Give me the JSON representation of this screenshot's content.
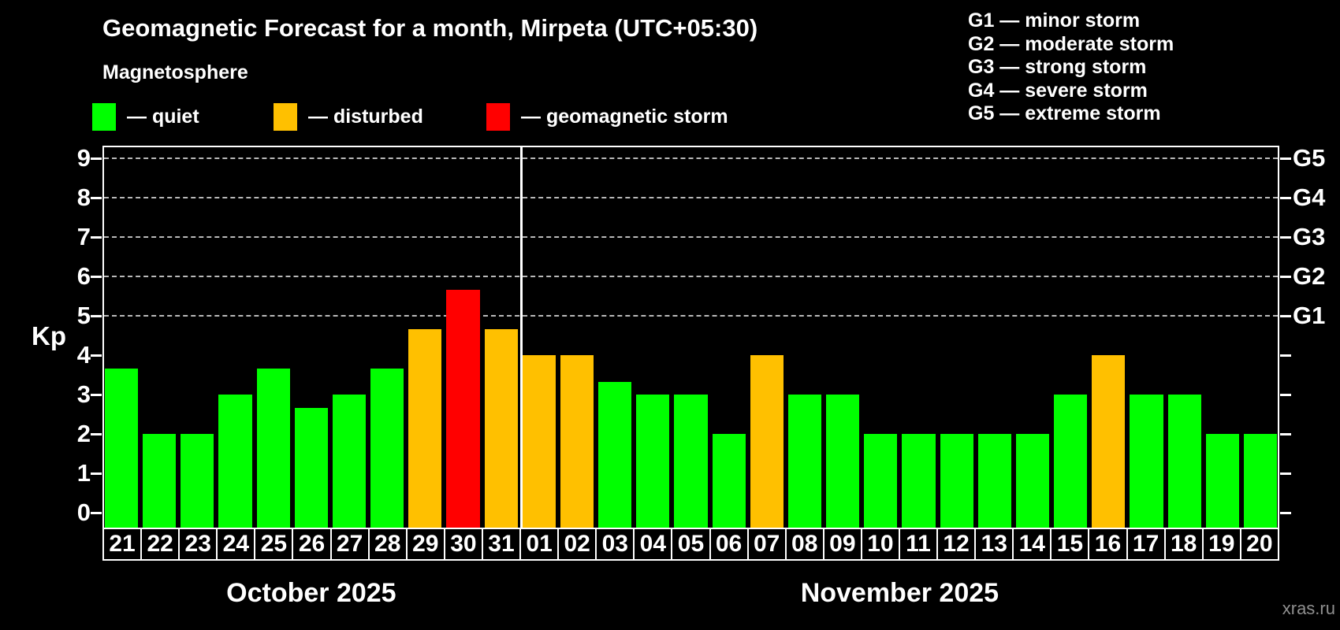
{
  "title": "Geomagnetic Forecast for a month, Mirpeta (UTC+05:30)",
  "subtitle": "Magnetosphere",
  "legend": {
    "items": [
      {
        "status": "quiet",
        "label": "— quiet",
        "color": "#00ff00"
      },
      {
        "status": "disturbed",
        "label": "— disturbed",
        "color": "#ffc000"
      },
      {
        "status": "storm",
        "label": "— geomagnetic storm",
        "color": "#ff0000"
      }
    ]
  },
  "g_legend": [
    "G1 — minor storm",
    "G2 — moderate storm",
    "G3 — strong storm",
    "G4 — severe storm",
    "G5 — extreme storm"
  ],
  "watermark": "xras.ru",
  "chart_data": {
    "type": "bar",
    "title": "Geomagnetic Forecast for a month, Mirpeta (UTC+05:30)",
    "ylabel": "Kp",
    "ylim": [
      0,
      9.4
    ],
    "yticks": [
      0,
      1,
      2,
      3,
      4,
      5,
      6,
      7,
      8,
      9
    ],
    "grid": true,
    "legend_position": "top",
    "colors": {
      "quiet": "#00ff00",
      "disturbed": "#ffc000",
      "storm": "#ff0000"
    },
    "grid_levels": [
      {
        "kp": 5,
        "label": "G1"
      },
      {
        "kp": 6,
        "label": "G2"
      },
      {
        "kp": 7,
        "label": "G3"
      },
      {
        "kp": 8,
        "label": "G4"
      },
      {
        "kp": 9,
        "label": "G5"
      }
    ],
    "months": [
      {
        "label": "October 2025",
        "days": 11
      },
      {
        "label": "November 2025",
        "days": 20
      }
    ],
    "bars": [
      {
        "day": "21",
        "kp": 3.67,
        "status": "quiet"
      },
      {
        "day": "22",
        "kp": 2.0,
        "status": "quiet"
      },
      {
        "day": "23",
        "kp": 2.0,
        "status": "quiet"
      },
      {
        "day": "24",
        "kp": 3.0,
        "status": "quiet"
      },
      {
        "day": "25",
        "kp": 3.67,
        "status": "quiet"
      },
      {
        "day": "26",
        "kp": 2.67,
        "status": "quiet"
      },
      {
        "day": "27",
        "kp": 3.0,
        "status": "quiet"
      },
      {
        "day": "28",
        "kp": 3.67,
        "status": "quiet"
      },
      {
        "day": "29",
        "kp": 4.67,
        "status": "disturbed"
      },
      {
        "day": "30",
        "kp": 5.67,
        "status": "storm"
      },
      {
        "day": "31",
        "kp": 4.67,
        "status": "disturbed"
      },
      {
        "day": "01",
        "kp": 4.0,
        "status": "disturbed"
      },
      {
        "day": "02",
        "kp": 4.0,
        "status": "disturbed"
      },
      {
        "day": "03",
        "kp": 3.33,
        "status": "quiet"
      },
      {
        "day": "04",
        "kp": 3.0,
        "status": "quiet"
      },
      {
        "day": "05",
        "kp": 3.0,
        "status": "quiet"
      },
      {
        "day": "06",
        "kp": 2.0,
        "status": "quiet"
      },
      {
        "day": "07",
        "kp": 4.0,
        "status": "disturbed"
      },
      {
        "day": "08",
        "kp": 3.0,
        "status": "quiet"
      },
      {
        "day": "09",
        "kp": 3.0,
        "status": "quiet"
      },
      {
        "day": "10",
        "kp": 2.0,
        "status": "quiet"
      },
      {
        "day": "11",
        "kp": 2.0,
        "status": "quiet"
      },
      {
        "day": "12",
        "kp": 2.0,
        "status": "quiet"
      },
      {
        "day": "13",
        "kp": 2.0,
        "status": "quiet"
      },
      {
        "day": "14",
        "kp": 2.0,
        "status": "quiet"
      },
      {
        "day": "15",
        "kp": 3.0,
        "status": "quiet"
      },
      {
        "day": "16",
        "kp": 4.0,
        "status": "disturbed"
      },
      {
        "day": "17",
        "kp": 3.0,
        "status": "quiet"
      },
      {
        "day": "18",
        "kp": 3.0,
        "status": "quiet"
      },
      {
        "day": "19",
        "kp": 2.0,
        "status": "quiet"
      },
      {
        "day": "20",
        "kp": 2.0,
        "status": "quiet"
      }
    ]
  }
}
